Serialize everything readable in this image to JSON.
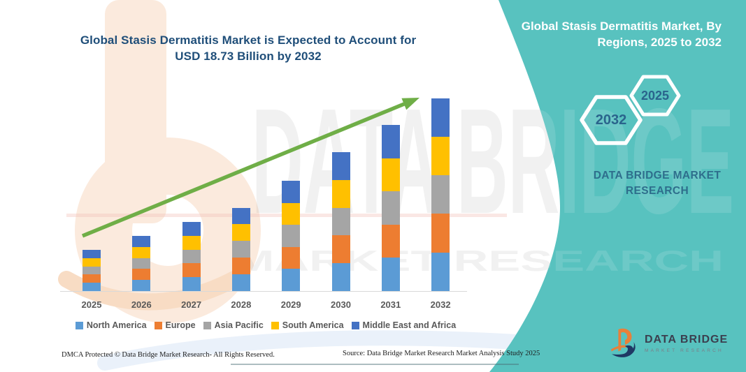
{
  "colors": {
    "teal_panel": "#58C2BF",
    "title_blue": "#1F4E79",
    "axis_text_gray": "#595959",
    "arrow_green": "#6FAE47",
    "hex_year_blue": "#2A648C",
    "brand_text_blue": "#2E6E8C",
    "logo_orange": "#E8803A",
    "logo_navy": "#1F3864"
  },
  "chart": {
    "title": "Global Stasis Dermatitis Market is Expected to Account for USD 18.73 Billion by 2032"
  },
  "chart_data": {
    "type": "bar",
    "stacked": true,
    "title": "Global Stasis Dermatitis Market is Expected to Account for USD 18.73 Billion by 2032",
    "unit": "USD Billion",
    "categories": [
      "2025",
      "2026",
      "2027",
      "2028",
      "2029",
      "2030",
      "2031",
      "2032"
    ],
    "totals_usd_billion": [
      4.0,
      5.35,
      6.7,
      8.1,
      10.7,
      13.5,
      16.15,
      18.73
    ],
    "series": [
      {
        "name": "North America",
        "color": "#5B9BD5",
        "values": [
          0.8,
          1.07,
          1.34,
          1.62,
          2.14,
          2.7,
          3.23,
          3.75
        ]
      },
      {
        "name": "Europe",
        "color": "#ED7D31",
        "values": [
          0.8,
          1.07,
          1.34,
          1.62,
          2.14,
          2.7,
          3.23,
          3.75
        ]
      },
      {
        "name": "Asia Pacific",
        "color": "#A5A5A5",
        "values": [
          0.8,
          1.07,
          1.34,
          1.62,
          2.14,
          2.7,
          3.23,
          3.75
        ]
      },
      {
        "name": "South America",
        "color": "#FFC000",
        "values": [
          0.8,
          1.07,
          1.34,
          1.62,
          2.14,
          2.7,
          3.23,
          3.75
        ]
      },
      {
        "name": "Middle East and Africa",
        "color": "#4472C4",
        "values": [
          0.8,
          1.07,
          1.34,
          1.62,
          2.14,
          2.7,
          3.23,
          3.73
        ]
      }
    ],
    "legend_position": "bottom",
    "gridlines": false,
    "trend_arrow": true,
    "trend_arrow_color": "#6FAE47",
    "xlabel": "",
    "ylabel": ""
  },
  "panel": {
    "title": "Global Stasis Dermatitis Market, By Regions, 2025 to 2032",
    "hex_back_year": "2032",
    "hex_front_year": "2025",
    "brand": "DATA BRIDGE MARKET RESEARCH"
  },
  "logo": {
    "title": "DATA BRIDGE",
    "subtitle": "MARKET RESEARCH"
  },
  "watermark": {
    "big": "DATA BRIDGE",
    "sub": "MARKET RESEARCH"
  },
  "footer": {
    "dmca": "DMCA Protected © Data Bridge Market Research-  All Rights Reserved.",
    "source": "Source: Data Bridge Market Research  Market Analysis Study 2025"
  }
}
